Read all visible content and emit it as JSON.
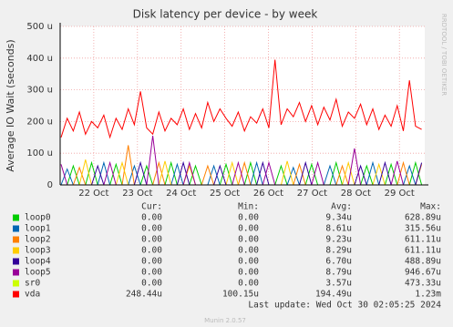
{
  "chart_data": {
    "type": "line",
    "title": "Disk latency per device - by week",
    "y_label": "Average IO Wait (seconds)",
    "side_note": "RRDTOOL / TOBI OETIKER",
    "footer": "Munin 2.0.57",
    "last_update": "Last update: Wed Oct 30 02:05:25 2024",
    "stats_headers": [
      "Cur:",
      "Min:",
      "Avg:",
      "Max:"
    ],
    "xlim": [
      21.23,
      29.58
    ],
    "xticks": [
      {
        "value": 22,
        "label": "22 Oct"
      },
      {
        "value": 23,
        "label": "23 Oct"
      },
      {
        "value": 24,
        "label": "24 Oct"
      },
      {
        "value": 25,
        "label": "25 Oct"
      },
      {
        "value": 26,
        "label": "26 Oct"
      },
      {
        "value": 27,
        "label": "27 Oct"
      },
      {
        "value": 28,
        "label": "28 Oct"
      },
      {
        "value": 29,
        "label": "29 Oct"
      }
    ],
    "ylim": [
      0,
      500
    ],
    "yticks": [
      0,
      {
        "value": 100,
        "label": "100 u"
      },
      {
        "value": 200,
        "label": "200 u"
      },
      {
        "value": 300,
        "label": "300 u"
      },
      {
        "value": 400,
        "label": "400 u"
      },
      {
        "value": 500,
        "label": "500 u"
      }
    ],
    "grid": true,
    "x": [
      21.25,
      21.39,
      21.53,
      21.67,
      21.81,
      21.95,
      22.09,
      22.23,
      22.37,
      22.51,
      22.65,
      22.79,
      22.93,
      23.07,
      23.21,
      23.35,
      23.49,
      23.63,
      23.77,
      23.91,
      24.05,
      24.19,
      24.33,
      24.47,
      24.61,
      24.75,
      24.89,
      25.03,
      25.17,
      25.31,
      25.45,
      25.59,
      25.73,
      25.87,
      26.01,
      26.15,
      26.29,
      26.43,
      26.57,
      26.71,
      26.85,
      26.99,
      27.13,
      27.27,
      27.41,
      27.55,
      27.69,
      27.83,
      27.97,
      28.11,
      28.25,
      28.39,
      28.53,
      28.67,
      28.81,
      28.95,
      29.09,
      29.23,
      29.37,
      29.51
    ],
    "series": [
      {
        "name": "loop0",
        "color": "#00cc00",
        "stats": [
          "0.00",
          "0.00",
          "9.34u",
          "628.89u"
        ],
        "values": [
          0,
          0,
          60,
          0,
          0,
          70,
          0,
          0,
          0,
          65,
          0,
          0,
          0,
          0,
          60,
          0,
          0,
          0,
          70,
          0,
          0,
          0,
          60,
          0,
          0,
          0,
          0,
          65,
          0,
          0,
          0,
          70,
          0,
          0,
          0,
          0,
          60,
          0,
          0,
          0,
          0,
          65,
          0,
          0,
          0,
          70,
          0,
          0,
          0,
          0,
          60,
          0,
          0,
          0,
          65,
          0,
          0,
          0,
          70,
          0
        ]
      },
      {
        "name": "loop1",
        "color": "#0066b3",
        "stats": [
          "0.00",
          "0.00",
          "8.61u",
          "315.56u"
        ],
        "values": [
          0,
          50,
          0,
          0,
          0,
          0,
          0,
          70,
          0,
          0,
          0,
          0,
          60,
          0,
          0,
          0,
          0,
          0,
          0,
          65,
          0,
          0,
          0,
          0,
          0,
          60,
          0,
          0,
          0,
          0,
          0,
          0,
          70,
          0,
          0,
          0,
          0,
          0,
          55,
          0,
          0,
          0,
          0,
          0,
          60,
          0,
          0,
          0,
          0,
          0,
          0,
          70,
          0,
          0,
          0,
          0,
          0,
          60,
          0,
          0
        ]
      },
      {
        "name": "loop2",
        "color": "#ff8000",
        "stats": [
          "0.00",
          "0.00",
          "9.23u",
          "611.11u"
        ],
        "values": [
          0,
          0,
          0,
          55,
          0,
          0,
          0,
          0,
          0,
          0,
          0,
          125,
          0,
          0,
          0,
          0,
          70,
          0,
          0,
          0,
          0,
          0,
          0,
          0,
          60,
          0,
          0,
          0,
          0,
          0,
          70,
          0,
          0,
          0,
          0,
          0,
          0,
          0,
          0,
          65,
          0,
          0,
          0,
          0,
          0,
          0,
          60,
          0,
          0,
          0,
          0,
          0,
          0,
          0,
          0,
          0,
          70,
          0,
          0,
          65
        ]
      },
      {
        "name": "loop3",
        "color": "#ffcc00",
        "stats": [
          "0.00",
          "0.00",
          "8.29u",
          "611.11u"
        ],
        "values": [
          0,
          0,
          0,
          0,
          80,
          0,
          0,
          0,
          0,
          0,
          70,
          0,
          0,
          0,
          0,
          0,
          0,
          75,
          0,
          0,
          0,
          60,
          0,
          0,
          0,
          0,
          0,
          0,
          70,
          0,
          0,
          0,
          0,
          0,
          0,
          0,
          0,
          75,
          0,
          0,
          0,
          0,
          0,
          0,
          0,
          0,
          0,
          70,
          0,
          0,
          0,
          0,
          65,
          0,
          0,
          0,
          0,
          0,
          0,
          0
        ]
      },
      {
        "name": "loop4",
        "color": "#330099",
        "stats": [
          "0.00",
          "0.00",
          "6.70u",
          "488.89u"
        ],
        "values": [
          0,
          0,
          0,
          0,
          0,
          0,
          60,
          0,
          0,
          0,
          0,
          0,
          0,
          70,
          0,
          0,
          0,
          0,
          0,
          0,
          70,
          0,
          0,
          0,
          0,
          0,
          60,
          0,
          0,
          0,
          0,
          0,
          0,
          70,
          0,
          0,
          0,
          0,
          0,
          0,
          70,
          0,
          0,
          0,
          0,
          0,
          0,
          0,
          0,
          60,
          0,
          0,
          0,
          70,
          0,
          0,
          0,
          0,
          0,
          70
        ]
      },
      {
        "name": "loop5",
        "color": "#990099",
        "stats": [
          "0.00",
          "0.00",
          "8.79u",
          "946.67u"
        ],
        "values": [
          65,
          0,
          0,
          0,
          0,
          0,
          0,
          0,
          70,
          0,
          0,
          0,
          0,
          0,
          0,
          155,
          0,
          0,
          0,
          0,
          0,
          70,
          0,
          0,
          0,
          0,
          0,
          0,
          0,
          70,
          0,
          0,
          0,
          0,
          70,
          0,
          0,
          0,
          0,
          0,
          0,
          0,
          70,
          0,
          0,
          0,
          0,
          0,
          115,
          0,
          0,
          0,
          0,
          0,
          0,
          75,
          0,
          0,
          0,
          0
        ]
      },
      {
        "name": "sr0",
        "color": "#ccff00",
        "stats": [
          "0.00",
          "0.00",
          "3.57u",
          "473.33u"
        ],
        "values": [
          0,
          0,
          0,
          0,
          0,
          0,
          0,
          0,
          0,
          0,
          0,
          0,
          0,
          0,
          0,
          0,
          0,
          0,
          0,
          0,
          0,
          0,
          0,
          0,
          0,
          0,
          0,
          0,
          0,
          0,
          0,
          0,
          0,
          0,
          0,
          0,
          0,
          0,
          0,
          0,
          0,
          0,
          0,
          0,
          0,
          0,
          0,
          0,
          0,
          0,
          0,
          0,
          0,
          0,
          0,
          0,
          0,
          0,
          0,
          0
        ]
      },
      {
        "name": "vda",
        "color": "#ff0000",
        "stats": [
          "248.44u",
          "100.15u",
          "194.49u",
          "1.23m"
        ],
        "values": [
          150,
          210,
          170,
          230,
          160,
          200,
          180,
          220,
          150,
          210,
          175,
          240,
          190,
          295,
          180,
          160,
          230,
          170,
          210,
          190,
          240,
          175,
          225,
          180,
          260,
          200,
          240,
          210,
          185,
          230,
          170,
          215,
          195,
          240,
          180,
          395,
          190,
          240,
          215,
          260,
          200,
          250,
          190,
          245,
          205,
          270,
          185,
          230,
          210,
          255,
          190,
          240,
          175,
          220,
          185,
          250,
          170,
          330,
          185,
          175
        ]
      }
    ]
  }
}
